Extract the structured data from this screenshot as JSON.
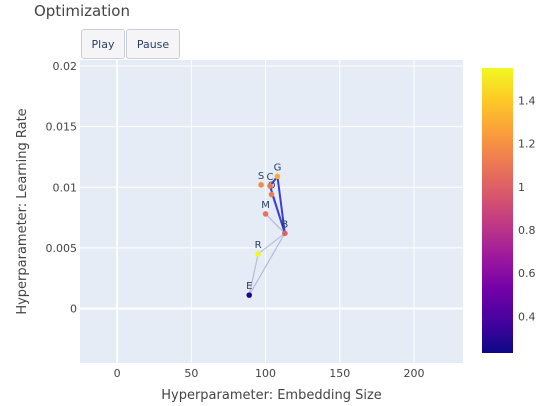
{
  "controls": {
    "play_label": "Play",
    "pause_label": "Pause"
  },
  "colors": {
    "plot_bg": "#e5ecf6",
    "grid": "#ffffff",
    "line_current": "#3a3fd6",
    "line_past": "#b7badc",
    "colorscale": [
      "#0d0887",
      "#46039f",
      "#7201a8",
      "#9c179e",
      "#bd3786",
      "#d8576b",
      "#ed7953",
      "#fb9f3a",
      "#fdca26",
      "#f0f921"
    ]
  },
  "chart_data": {
    "type": "scatter",
    "title": "Optimization",
    "xlabel": "Hyperparameter: Embedding Size",
    "ylabel": "Hyperparameter: Learning Rate",
    "xlim": [
      -25,
      233
    ],
    "ylim": [
      -0.0045,
      0.0205
    ],
    "xticks": [
      0,
      50,
      100,
      150,
      200
    ],
    "yticks": [
      0,
      0.005,
      0.01,
      0.015,
      0.02
    ],
    "ytick_labels": [
      "0",
      "0.005",
      "0.01",
      "0.015",
      "0.02"
    ],
    "colorbar": {
      "range": [
        0.23,
        1.55
      ],
      "ticks": [
        0.4,
        0.6,
        0.8,
        1,
        1.2,
        1.4
      ],
      "tick_labels": [
        "0.4",
        "0.6",
        "0.8",
        "1",
        "1.2",
        "1.4"
      ]
    },
    "grid": true,
    "points": [
      {
        "label": "E",
        "x": 89,
        "y": 0.0011,
        "value": 0.26
      },
      {
        "label": "R",
        "x": 95,
        "y": 0.0045,
        "value": 1.55
      },
      {
        "label": "B",
        "x": 113,
        "y": 0.0062,
        "value": 1.0
      },
      {
        "label": "M",
        "x": 100,
        "y": 0.0078,
        "value": 1.08
      },
      {
        "label": "O",
        "x": 104,
        "y": 0.0094,
        "value": 1.12
      },
      {
        "label": "C",
        "x": 103,
        "y": 0.0101,
        "value": 1.1
      },
      {
        "label": "S",
        "x": 97,
        "y": 0.0102,
        "value": 1.18
      },
      {
        "label": "G",
        "x": 108,
        "y": 0.0109,
        "value": 1.3
      }
    ],
    "path_past": [
      [
        89,
        0.0011
      ],
      [
        95,
        0.0045
      ],
      [
        113,
        0.0062
      ],
      [
        89,
        0.0011
      ],
      [
        113,
        0.0062
      ],
      [
        100,
        0.0078
      ],
      [
        113,
        0.0062
      ],
      [
        104,
        0.0094
      ]
    ],
    "path_current": [
      [
        113,
        0.0062
      ],
      [
        108,
        0.0109
      ],
      [
        103,
        0.0101
      ],
      [
        113,
        0.0062
      ]
    ]
  }
}
